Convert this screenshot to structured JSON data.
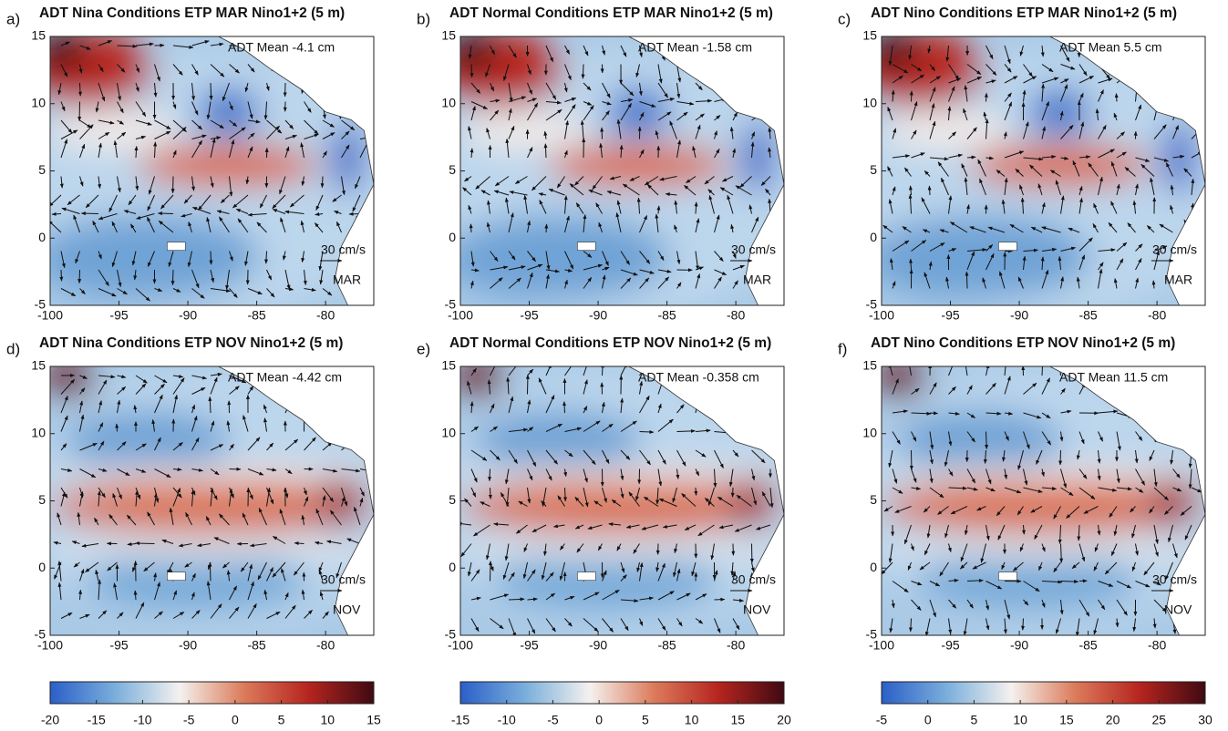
{
  "chart_data": [
    {
      "type": "map",
      "label": "a)",
      "title": "ADT Nina Conditions ETP MAR Nino1+2 (5 m)",
      "annotations": [
        "ADT Mean -4.1 cm",
        "30 cm/s",
        "MAR"
      ],
      "xlim": [
        -100,
        -76.5
      ],
      "ylim": [
        -5,
        15
      ],
      "xticks": [
        -100,
        -95,
        -90,
        -85,
        -80
      ],
      "yticks": [
        -5,
        0,
        5,
        10,
        15
      ]
    },
    {
      "type": "map",
      "label": "b)",
      "title": "ADT Normal Conditions ETP MAR Nino1+2 (5 m)",
      "annotations": [
        "ADT Mean -1.58 cm",
        "30 cm/s",
        "MAR"
      ],
      "xlim": [
        -100,
        -76.5
      ],
      "ylim": [
        -5,
        15
      ],
      "xticks": [
        -100,
        -95,
        -90,
        -85,
        -80
      ],
      "yticks": [
        -5,
        0,
        5,
        10,
        15
      ]
    },
    {
      "type": "map",
      "label": "c)",
      "title": "ADT Nino Conditions ETP MAR Nino1+2 (5 m)",
      "annotations": [
        "ADT Mean 5.5 cm",
        "30 cm/s",
        "MAR"
      ],
      "xlim": [
        -100,
        -76.5
      ],
      "ylim": [
        -5,
        15
      ],
      "xticks": [
        -100,
        -95,
        -90,
        -85,
        -80
      ],
      "yticks": [
        -5,
        0,
        5,
        10,
        15
      ]
    },
    {
      "type": "map",
      "label": "d)",
      "title": "ADT Nina Conditions ETP NOV Nino1+2 (5 m)",
      "annotations": [
        "ADT Mean -4.42 cm",
        "30 cm/s",
        "NOV"
      ],
      "xlim": [
        -100,
        -76.5
      ],
      "ylim": [
        -5,
        15
      ],
      "xticks": [
        -100,
        -95,
        -90,
        -85,
        -80
      ],
      "yticks": [
        -5,
        0,
        5,
        10,
        15
      ]
    },
    {
      "type": "map",
      "label": "e)",
      "title": "ADT Normal Conditions ETP NOV Nino1+2 (5 m)",
      "annotations": [
        "ADT Mean -0.358 cm",
        "30 cm/s",
        "NOV"
      ],
      "xlim": [
        -100,
        -76.5
      ],
      "ylim": [
        -5,
        15
      ],
      "xticks": [
        -100,
        -95,
        -90,
        -85,
        -80
      ],
      "yticks": [
        -5,
        0,
        5,
        10,
        15
      ]
    },
    {
      "type": "map",
      "label": "f)",
      "title": "ADT Nino Conditions ETP NOV Nino1+2 (5 m)",
      "annotations": [
        "ADT Mean 11.5 cm",
        "30 cm/s",
        "NOV"
      ],
      "xlim": [
        -100,
        -76.5
      ],
      "ylim": [
        -5,
        15
      ],
      "xticks": [
        -100,
        -95,
        -90,
        -85,
        -80
      ],
      "yticks": [
        -5,
        0,
        5,
        10,
        15
      ]
    },
    {
      "type": "colorbar",
      "clim": [
        -20,
        15
      ],
      "cticks": [
        -20,
        -15,
        -10,
        -5,
        0,
        5,
        10,
        15
      ],
      "colors": [
        "#2a5fc8",
        "#7aaedb",
        "#f4f1ef",
        "#dc7a5a",
        "#b5241f",
        "#3f0a12"
      ]
    },
    {
      "type": "colorbar",
      "clim": [
        -15,
        20
      ],
      "cticks": [
        -15,
        -10,
        -5,
        0,
        5,
        10,
        15,
        20
      ],
      "colors": [
        "#2a5fc8",
        "#7aaedb",
        "#f4f1ef",
        "#dc7a5a",
        "#b5241f",
        "#3f0a12"
      ]
    },
    {
      "type": "colorbar",
      "clim": [
        -5,
        30
      ],
      "cticks": [
        -5,
        0,
        5,
        10,
        15,
        20,
        25,
        30
      ],
      "colors": [
        "#2a5fc8",
        "#7aaedb",
        "#f4f1ef",
        "#dc7a5a",
        "#b5241f",
        "#3f0a12"
      ]
    }
  ]
}
